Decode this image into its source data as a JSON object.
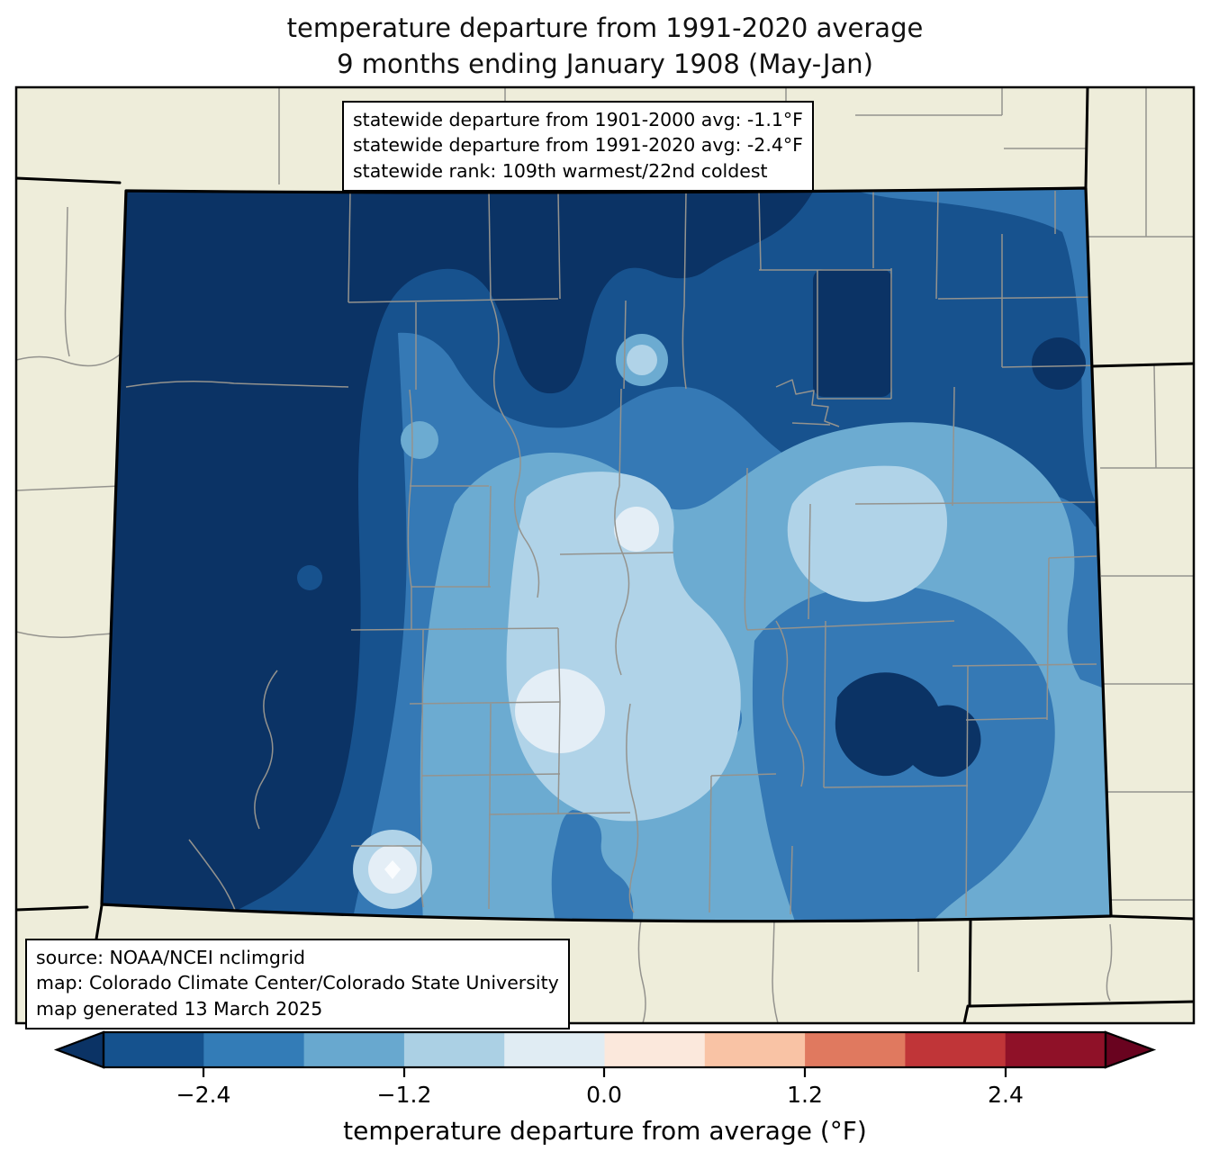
{
  "title": {
    "line1": "temperature departure from 1991-2020 average",
    "line2": "9 months ending January 1908 (May-Jan)"
  },
  "stats_box": {
    "line1": "statewide departure from 1901-2000 avg: -1.1°F",
    "line2": "statewide departure from 1991-2020 avg: -2.4°F",
    "line3": "statewide rank: 109th warmest/22nd coldest"
  },
  "source_box": {
    "line1": "source: NOAA/NCEI nclimgrid",
    "line2": "map: Colorado Climate Center/Colorado State University",
    "line3": "map generated 13 March 2025"
  },
  "colorbar": {
    "label": "temperature departure from average (°F)",
    "ticks": [
      "−2.4",
      "−1.2",
      "0.0",
      "1.2",
      "2.4"
    ],
    "tick_values": [
      -2.4,
      -1.2,
      0.0,
      1.2,
      2.4
    ],
    "range": [
      -3.0,
      3.0
    ],
    "segments": [
      "#15528e",
      "#337cb7",
      "#68a8cf",
      "#abd0e4",
      "#e0ecf3",
      "#fbe8dc",
      "#f9c3a5",
      "#e0795f",
      "#c03538",
      "#8f1128"
    ],
    "under_color": "#0b3365",
    "over_color": "#69031f",
    "outline_color": "#000000"
  },
  "map": {
    "background_color": "#eeedda",
    "state_border_color": "#000000",
    "county_line_color": "#94938e",
    "white_peak_color": "#fafcfe",
    "levels": [
      {
        "range_f": "below -3.0",
        "color": "#0b3365"
      },
      {
        "range_f": "-3.0 to -2.4",
        "color": "#17528e"
      },
      {
        "range_f": "-2.4 to -1.8",
        "color": "#3579b5"
      },
      {
        "range_f": "-1.8 to -1.2",
        "color": "#6cabd1"
      },
      {
        "range_f": "-1.2 to -0.6",
        "color": "#b0d3e8"
      },
      {
        "range_f": "-0.6 to 0.0",
        "color": "#e4eef6"
      }
    ]
  }
}
